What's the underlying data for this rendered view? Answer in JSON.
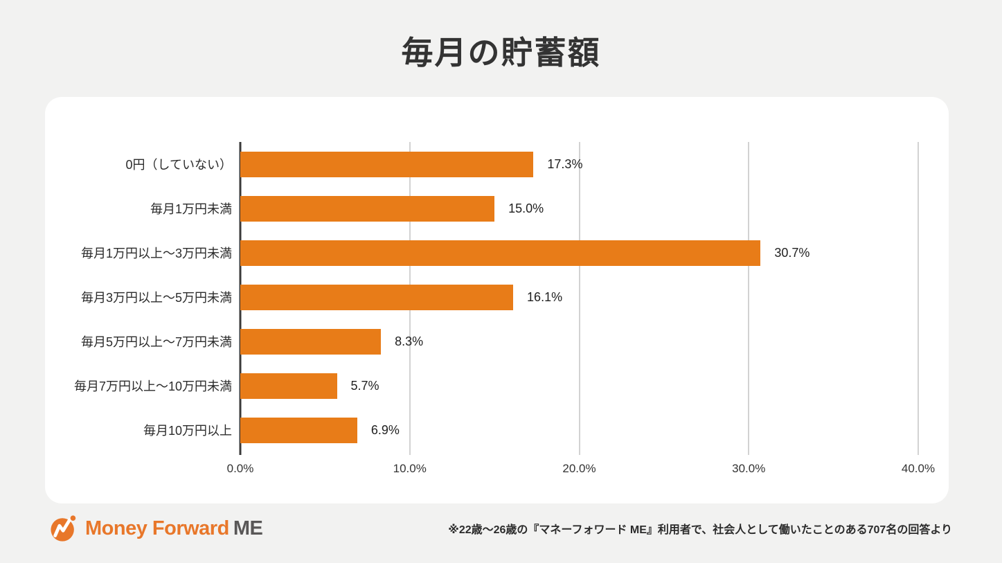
{
  "title": "毎月の貯蓄額",
  "chart_data": {
    "type": "bar",
    "orientation": "horizontal",
    "title": "毎月の貯蓄額",
    "categories": [
      "0円（していない）",
      "毎月1万円未満",
      "毎月1万円以上〜3万円未満",
      "毎月3万円以上〜5万円未満",
      "毎月5万円以上〜7万円未満",
      "毎月7万円以上〜10万円未満",
      "毎月10万円以上"
    ],
    "values": [
      17.3,
      15.0,
      30.7,
      16.1,
      8.3,
      5.7,
      6.9
    ],
    "value_labels": [
      "17.3%",
      "15.0%",
      "30.7%",
      "16.1%",
      "8.3%",
      "5.7%",
      "6.9%"
    ],
    "x_ticks": [
      "0.0%",
      "10.0%",
      "20.0%",
      "30.0%",
      "40.0%"
    ],
    "x_tick_values": [
      0,
      10,
      20,
      30,
      40
    ],
    "xlim": [
      0,
      40
    ],
    "xlabel": "",
    "ylabel": "",
    "grid": true,
    "legend": false,
    "bar_color": "#e87c18"
  },
  "footer": {
    "logo_text_main": "Money Forward",
    "logo_text_suffix": "ME",
    "note": "※22歳〜26歳の『マネーフォワード ME』利用者で、社会人として働いたことのある707名の回答より"
  },
  "colors": {
    "background": "#f2f2f1",
    "card": "#ffffff",
    "bar": "#e87c18",
    "title_text": "#333333",
    "axis_line": "#3a3a3a",
    "gridline": "#d2d2d2",
    "logo_orange": "#e8772a",
    "logo_gray": "#595757"
  }
}
